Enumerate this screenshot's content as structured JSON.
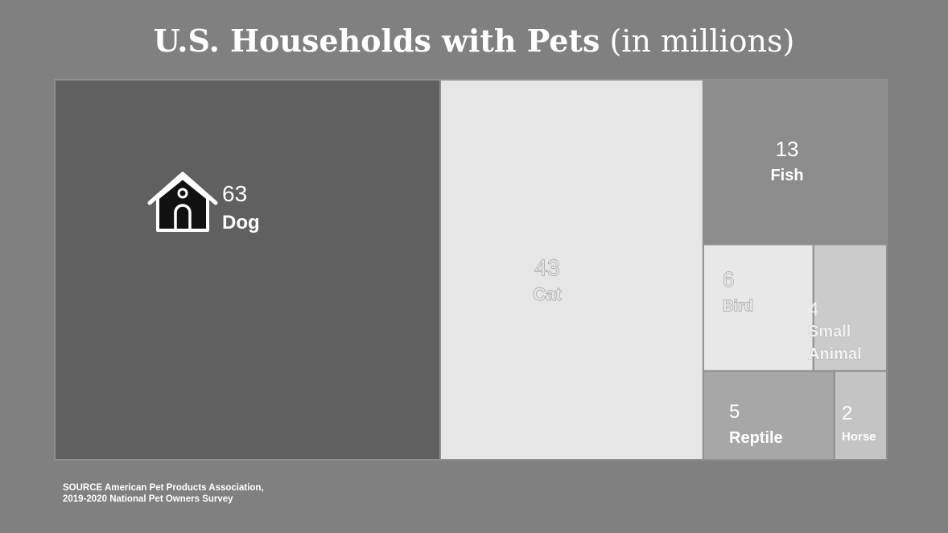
{
  "title": {
    "bold": "U.S. Households with Pets",
    "suffix": "(in millions)"
  },
  "source": {
    "line1": "SOURCE American Pet Products Association,",
    "line2": "2019-2020 National Pet Owners Survey"
  },
  "chart_data": {
    "type": "treemap",
    "unit": "millions",
    "categories": [
      "Dog",
      "Cat",
      "Fish",
      "Bird",
      "Small Animal",
      "Reptile",
      "Horse"
    ],
    "values": [
      63,
      43,
      13,
      6,
      4,
      5,
      2
    ],
    "items": [
      {
        "label": "Dog",
        "value": 63,
        "color": "#606060",
        "text_color": "#ffffff",
        "icon": "dog-house-icon"
      },
      {
        "label": "Cat",
        "value": 43,
        "color": "#e6e6e6",
        "text_color": "#e6e6e6"
      },
      {
        "label": "Fish",
        "value": 13,
        "color": "#8c8c8c",
        "text_color": "#ffffff"
      },
      {
        "label": "Bird",
        "value": 6,
        "color": "#e8e8e8",
        "text_color": "#e8e8e8"
      },
      {
        "label": "Small Animal",
        "value": 4,
        "color": "#cbcbcb",
        "text_color": "#f2f2f2"
      },
      {
        "label": "Reptile",
        "value": 5,
        "color": "#a7a7a7",
        "text_color": "#ffffff"
      },
      {
        "label": "Horse",
        "value": 2,
        "color": "#c4c4c4",
        "text_color": "#ffffff"
      }
    ]
  }
}
